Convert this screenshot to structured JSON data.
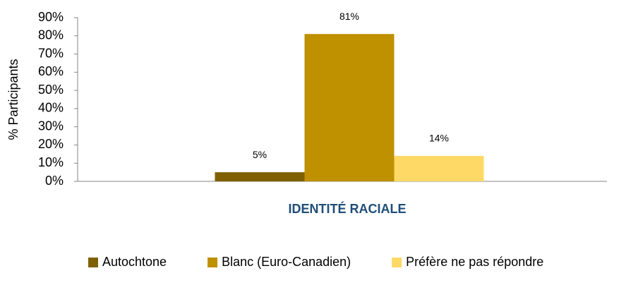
{
  "chart_data": {
    "type": "bar",
    "y_label": "% Participants",
    "categories": [
      "IDENTITÉ RACIALE"
    ],
    "series": [
      {
        "name": "Autochtone",
        "color": "#7f6000",
        "values": [
          5
        ],
        "value_labels": [
          "5%"
        ]
      },
      {
        "name": "Blanc (Euro-Canadien)",
        "color": "#bf9000",
        "values": [
          81
        ],
        "value_labels": [
          "81%"
        ]
      },
      {
        "name": "Préfère ne pas répondre",
        "color": "#ffd966",
        "values": [
          14
        ],
        "value_labels": [
          "14%"
        ]
      }
    ],
    "ylim": [
      0,
      90
    ],
    "yticks": [
      {
        "value": 0,
        "label": "0%"
      },
      {
        "value": 10,
        "label": "10%"
      },
      {
        "value": 20,
        "label": "20%"
      },
      {
        "value": 30,
        "label": "30%"
      },
      {
        "value": 40,
        "label": "40%"
      },
      {
        "value": 50,
        "label": "50%"
      },
      {
        "value": 60,
        "label": "60%"
      },
      {
        "value": 70,
        "label": "70%"
      },
      {
        "value": 80,
        "label": "80%"
      },
      {
        "value": 90,
        "label": "90%"
      }
    ],
    "grid": false,
    "legend": "bottom"
  }
}
